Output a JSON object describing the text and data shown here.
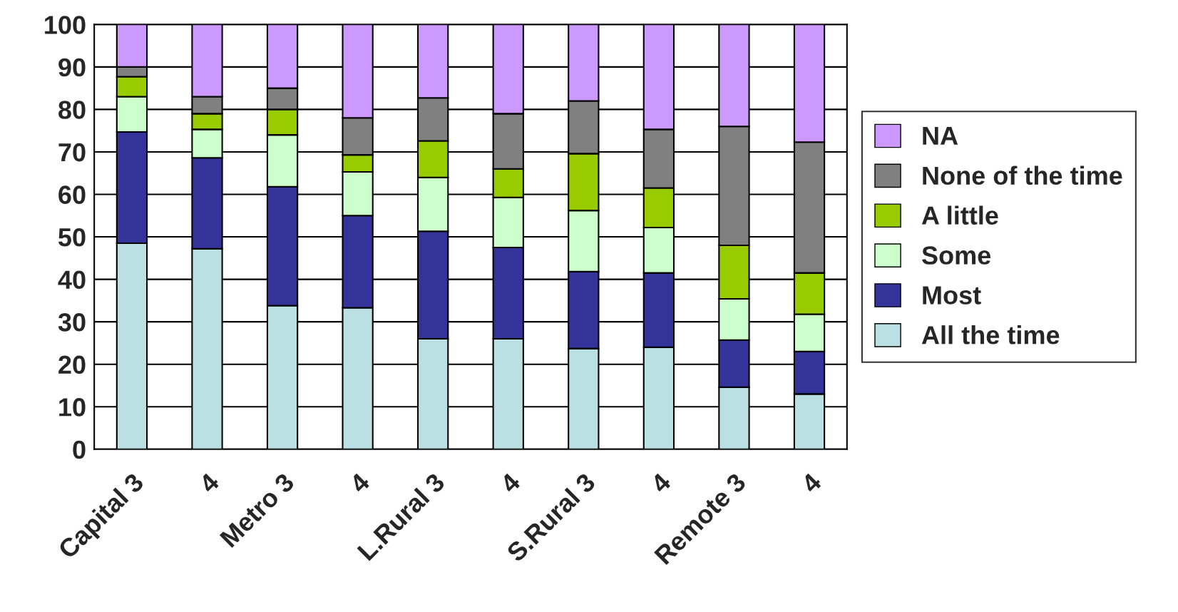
{
  "chart_data": {
    "type": "bar",
    "stacked": true,
    "categories": [
      "Capital 3",
      "4",
      "Metro 3",
      "4",
      "L.Rural 3",
      "4",
      "S.Rural 3",
      "4",
      "Remote 3",
      "4"
    ],
    "series": [
      {
        "name": "All the time",
        "color": "#bbe0e3",
        "values": [
          48.5,
          47.2,
          33.8,
          33.3,
          26,
          26,
          23.7,
          24,
          14.6,
          13
        ]
      },
      {
        "name": "Most",
        "color": "#333399",
        "values": [
          26.2,
          21.4,
          28,
          21.7,
          25.3,
          21.5,
          18.1,
          17.5,
          11.1,
          10
        ]
      },
      {
        "name": "Some",
        "color": "#ccffcc",
        "values": [
          8.3,
          6.7,
          12.2,
          10.3,
          12.7,
          11.8,
          14.4,
          10.7,
          9.7,
          8.8
        ]
      },
      {
        "name": "A little",
        "color": "#99cc00",
        "values": [
          4.7,
          3.7,
          6,
          4,
          8.6,
          6.7,
          13.4,
          9.3,
          12.6,
          9.7
        ]
      },
      {
        "name": "None of the time",
        "color": "#808080",
        "values": [
          2.3,
          4,
          5,
          8.7,
          10.1,
          13,
          12.4,
          13.8,
          28,
          30.8
        ]
      },
      {
        "name": "NA",
        "color": "#cc99ff",
        "values": [
          10,
          17,
          15,
          22,
          17.3,
          21,
          18,
          24.7,
          24,
          27.7
        ]
      }
    ],
    "ylim": [
      0,
      100
    ],
    "yticks": [
      0,
      10,
      20,
      30,
      40,
      50,
      60,
      70,
      80,
      90,
      100
    ],
    "grid": "y",
    "legend": "right"
  }
}
